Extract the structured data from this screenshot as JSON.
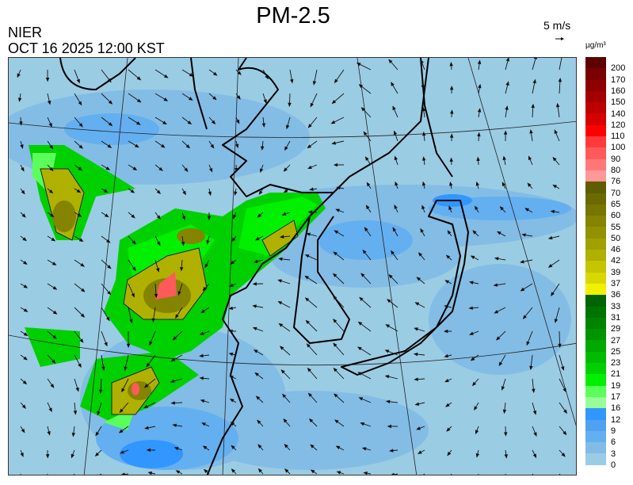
{
  "header": {
    "title": "PM-2.5",
    "organization": "NIER",
    "datetime": "OCT 16 2025 12:00 KST"
  },
  "wind_scale": {
    "label": "5 m/s",
    "icon": "arrow-right-icon"
  },
  "legend": {
    "unit": "µg/m³",
    "labels": [
      "200",
      "170",
      "160",
      "150",
      "140",
      "120",
      "110",
      "100",
      "90",
      "80",
      "76",
      "70",
      "65",
      "60",
      "55",
      "50",
      "46",
      "42",
      "39",
      "37",
      "36",
      "33",
      "31",
      "29",
      "27",
      "25",
      "23",
      "21",
      "19",
      "17",
      "16",
      "12",
      "9",
      "6",
      "3",
      "0"
    ],
    "colors": [
      "#5c0000",
      "#7a0000",
      "#8e0000",
      "#a40000",
      "#bc0000",
      "#d60000",
      "#ff0000",
      "#ff3a3a",
      "#ff5a5a",
      "#ff7878",
      "#ff9898",
      "#5e5e00",
      "#6a6a00",
      "#767600",
      "#848400",
      "#929200",
      "#a0a000",
      "#b0b000",
      "#c4c400",
      "#d8d800",
      "#f0f000",
      "#006400",
      "#007400",
      "#008400",
      "#009400",
      "#00a800",
      "#00bc00",
      "#00d000",
      "#00f000",
      "#5aff5a",
      "#98fc98",
      "#3296ff",
      "#4ea2f0",
      "#64aff0",
      "#82bce6",
      "#9acce4"
    ]
  }
}
